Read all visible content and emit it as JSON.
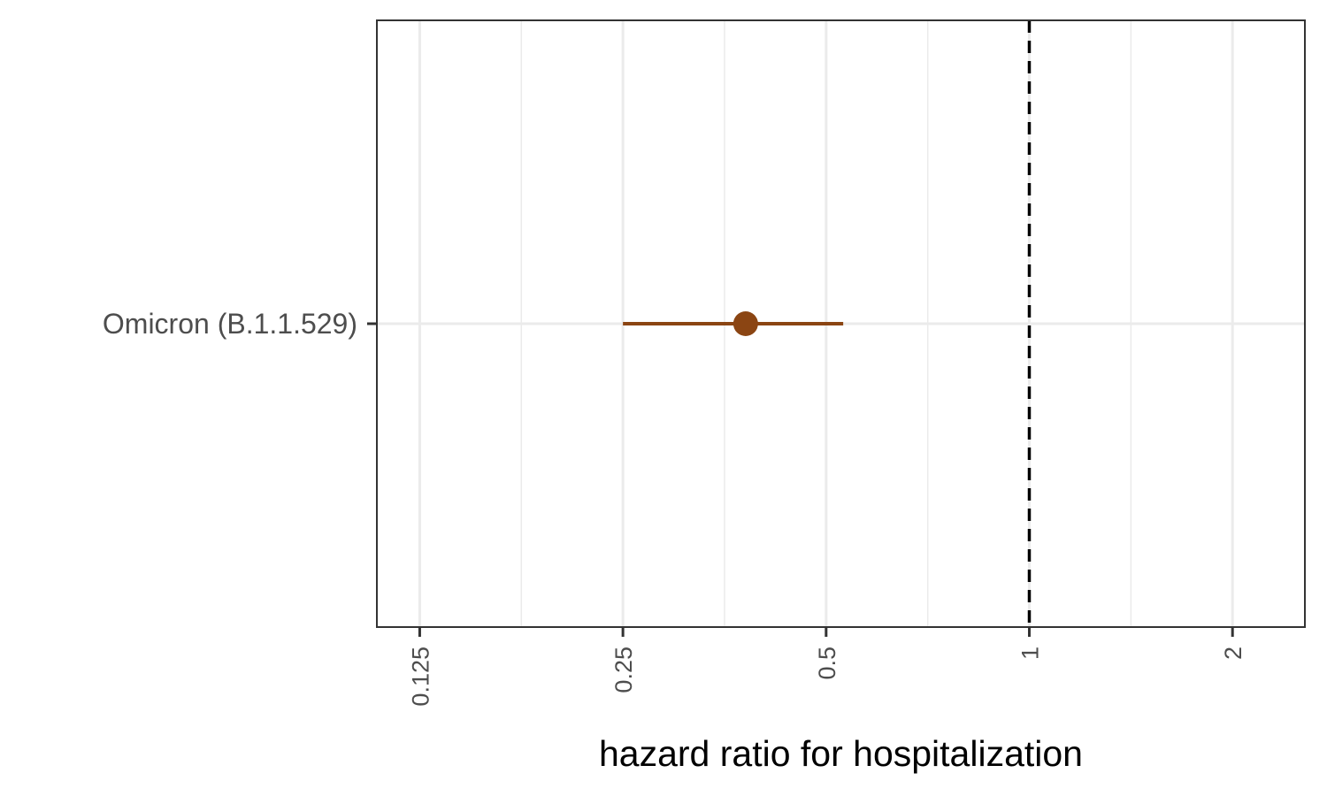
{
  "chart_data": {
    "type": "scatter",
    "title": "",
    "xlabel": "hazard ratio for hospitalization",
    "ylabel": "",
    "x_scale": "log2",
    "xlim": [
      0.108,
      2.56
    ],
    "x_ticks": [
      0.125,
      0.25,
      0.5,
      1,
      2
    ],
    "x_tick_labels": [
      "0.125",
      "0.25",
      "0.5",
      "1",
      "2"
    ],
    "x_minor_grid": [
      0.1768,
      0.3536,
      0.7071,
      1.4142
    ],
    "reference_line": {
      "x": 1,
      "style": "dashed",
      "color": "#000000"
    },
    "grid": true,
    "legend": "none",
    "categories": [
      "Omicron (B.1.1.529)"
    ],
    "points": [
      {
        "category": "Omicron (B.1.1.529)",
        "estimate": 0.38,
        "lower": 0.25,
        "upper": 0.53,
        "color": "#8b4513"
      }
    ],
    "colors": {
      "point": "#8b4513",
      "grid": "#ebebeb",
      "panel_border": "#333333",
      "text": "#4d4d4d"
    }
  }
}
